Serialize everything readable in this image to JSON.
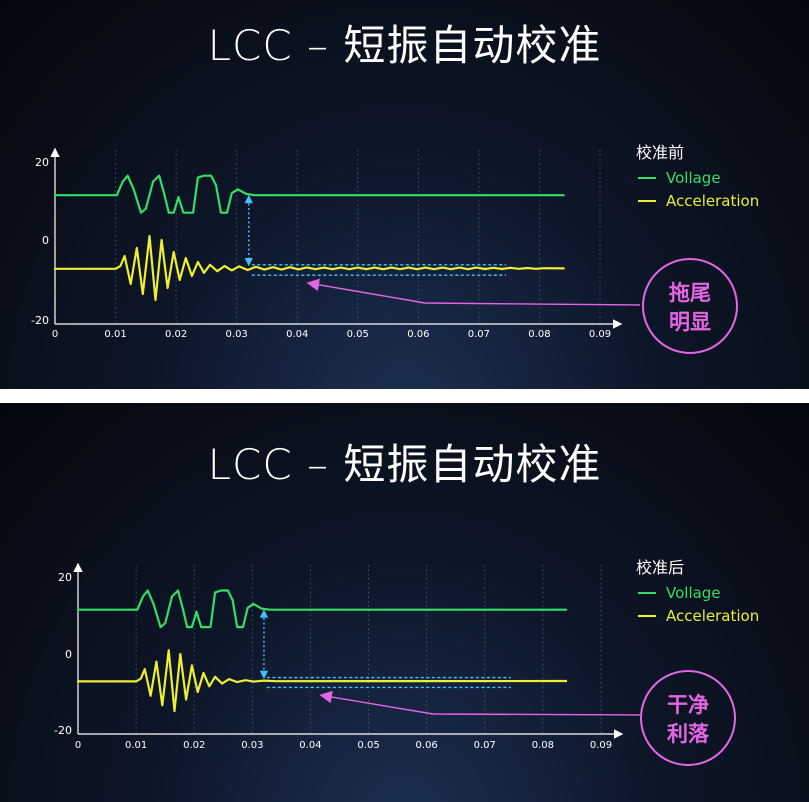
{
  "slides": [
    {
      "title": "LCC – 短振自动校准",
      "legend": {
        "heading": "校准前",
        "voltage": "Vollage",
        "acceleration": "Acceleration"
      },
      "callout": {
        "line1": "拖尾",
        "line2": "明显"
      }
    },
    {
      "title": "LCC – 短振自动校准",
      "legend": {
        "heading": "校准后",
        "voltage": "Vollage",
        "acceleration": "Acceleration"
      },
      "callout": {
        "line1": "干净",
        "line2": "利落"
      }
    }
  ],
  "colors": {
    "voltage": "#33dd66",
    "acceleration": "#eeee33",
    "annotation": "#3fc4ff",
    "callout": "#e466e4"
  },
  "chart_data": [
    {
      "type": "line",
      "title": "校准前",
      "x_ticks": [
        "0",
        "0.01",
        "0.02",
        "0.03",
        "0.04",
        "0.05",
        "0.06",
        "0.07",
        "0.08",
        "0.09"
      ],
      "y_ticks": [
        "20",
        "0",
        "-20"
      ],
      "xlim": [
        0,
        0.09
      ],
      "ylim": [
        -20,
        20
      ],
      "series": [
        {
          "name": "Vollage",
          "points": [
            [
              0,
              11.5
            ],
            [
              0.0102,
              11.5
            ],
            [
              0.0112,
              15
            ],
            [
              0.012,
              16.5
            ],
            [
              0.013,
              13
            ],
            [
              0.0142,
              7
            ],
            [
              0.015,
              8
            ],
            [
              0.0162,
              15
            ],
            [
              0.0172,
              16.5
            ],
            [
              0.018,
              12
            ],
            [
              0.0188,
              7
            ],
            [
              0.0196,
              7
            ],
            [
              0.0204,
              11
            ],
            [
              0.0212,
              7
            ],
            [
              0.0228,
              7
            ],
            [
              0.0236,
              16
            ],
            [
              0.0246,
              16.5
            ],
            [
              0.0258,
              16.5
            ],
            [
              0.0266,
              14
            ],
            [
              0.0274,
              7
            ],
            [
              0.0284,
              7
            ],
            [
              0.0292,
              12
            ],
            [
              0.0302,
              13
            ],
            [
              0.0316,
              11.8
            ],
            [
              0.033,
              11.5
            ],
            [
              0.084,
              11.5
            ]
          ]
        },
        {
          "name": "Acceleration",
          "points": [
            [
              0,
              -7.2
            ],
            [
              0.01,
              -7.2
            ],
            [
              0.0108,
              -6.5
            ],
            [
              0.0115,
              -4
            ],
            [
              0.0125,
              -11
            ],
            [
              0.0135,
              -2
            ],
            [
              0.0145,
              -13.5
            ],
            [
              0.0156,
              1
            ],
            [
              0.0166,
              -15
            ],
            [
              0.0176,
              0
            ],
            [
              0.0186,
              -12
            ],
            [
              0.0196,
              -3
            ],
            [
              0.0206,
              -10
            ],
            [
              0.0216,
              -4.5
            ],
            [
              0.0226,
              -9
            ],
            [
              0.0236,
              -5.5
            ],
            [
              0.0246,
              -8.2
            ],
            [
              0.0256,
              -6.2
            ],
            [
              0.0268,
              -7.8
            ],
            [
              0.028,
              -6.5
            ],
            [
              0.0292,
              -7.6
            ],
            [
              0.0304,
              -6.6
            ],
            [
              0.0318,
              -7.5
            ],
            [
              0.0332,
              -6.7
            ],
            [
              0.0346,
              -7.4
            ],
            [
              0.036,
              -6.8
            ],
            [
              0.0374,
              -7.4
            ],
            [
              0.0388,
              -6.8
            ],
            [
              0.0402,
              -7.35
            ],
            [
              0.0416,
              -6.85
            ],
            [
              0.043,
              -7.3
            ],
            [
              0.0444,
              -6.9
            ],
            [
              0.0458,
              -7.3
            ],
            [
              0.0472,
              -6.9
            ],
            [
              0.0486,
              -7.3
            ],
            [
              0.05,
              -6.9
            ],
            [
              0.0514,
              -7.3
            ],
            [
              0.0528,
              -6.9
            ],
            [
              0.0542,
              -7.3
            ],
            [
              0.0556,
              -6.9
            ],
            [
              0.057,
              -7.3
            ],
            [
              0.0584,
              -6.9
            ],
            [
              0.0598,
              -7.3
            ],
            [
              0.0612,
              -6.9
            ],
            [
              0.0626,
              -7.3
            ],
            [
              0.064,
              -6.9
            ],
            [
              0.0654,
              -7.3
            ],
            [
              0.0668,
              -6.9
            ],
            [
              0.0682,
              -7.3
            ],
            [
              0.0696,
              -6.9
            ],
            [
              0.071,
              -7.25
            ],
            [
              0.0724,
              -6.95
            ],
            [
              0.0738,
              -7.25
            ],
            [
              0.0752,
              -6.95
            ],
            [
              0.0766,
              -7.2
            ],
            [
              0.078,
              -7.0
            ],
            [
              0.0794,
              -7.2
            ],
            [
              0.0808,
              -7.05
            ],
            [
              0.084,
              -7.1
            ]
          ]
        }
      ],
      "annotation": {
        "vline_x": 0.032,
        "vline_y": [
          10.5,
          -5.5
        ],
        "band_x": [
          0.0325,
          0.0745
        ],
        "band_y": [
          -6.2,
          -8.8
        ]
      },
      "grid": "dotted"
    },
    {
      "type": "line",
      "title": "校准后",
      "x_ticks": [
        "0",
        "0.01",
        "0.02",
        "0.03",
        "0.04",
        "0.05",
        "0.06",
        "0.07",
        "0.08",
        "0.09"
      ],
      "y_ticks": [
        "20",
        "0",
        "-20"
      ],
      "xlim": [
        0,
        0.09
      ],
      "ylim": [
        -20,
        20
      ],
      "series": [
        {
          "name": "Vollage",
          "points": [
            [
              0,
              11.5
            ],
            [
              0.0102,
              11.5
            ],
            [
              0.0112,
              15
            ],
            [
              0.012,
              16.5
            ],
            [
              0.013,
              13
            ],
            [
              0.0142,
              7
            ],
            [
              0.015,
              8
            ],
            [
              0.0162,
              15
            ],
            [
              0.0172,
              16.5
            ],
            [
              0.018,
              12
            ],
            [
              0.0188,
              7
            ],
            [
              0.0196,
              7
            ],
            [
              0.0204,
              11
            ],
            [
              0.0212,
              7
            ],
            [
              0.0228,
              7
            ],
            [
              0.0236,
              16
            ],
            [
              0.0246,
              16.5
            ],
            [
              0.0258,
              16.5
            ],
            [
              0.0266,
              14
            ],
            [
              0.0274,
              7
            ],
            [
              0.0284,
              7
            ],
            [
              0.0292,
              12
            ],
            [
              0.0302,
              13
            ],
            [
              0.0316,
              11.8
            ],
            [
              0.033,
              11.5
            ],
            [
              0.084,
              11.5
            ]
          ]
        },
        {
          "name": "Acceleration",
          "points": [
            [
              0,
              -7.2
            ],
            [
              0.01,
              -7.2
            ],
            [
              0.0108,
              -6.5
            ],
            [
              0.0115,
              -4
            ],
            [
              0.0125,
              -11
            ],
            [
              0.0135,
              -2
            ],
            [
              0.0145,
              -13.5
            ],
            [
              0.0156,
              1
            ],
            [
              0.0166,
              -15
            ],
            [
              0.0176,
              0
            ],
            [
              0.0186,
              -12
            ],
            [
              0.0196,
              -3
            ],
            [
              0.0206,
              -10
            ],
            [
              0.0216,
              -5
            ],
            [
              0.0226,
              -8.5
            ],
            [
              0.0236,
              -6
            ],
            [
              0.0248,
              -7.8
            ],
            [
              0.026,
              -6.6
            ],
            [
              0.0274,
              -7.4
            ],
            [
              0.0288,
              -6.9
            ],
            [
              0.0302,
              -7.25
            ],
            [
              0.032,
              -7.0
            ],
            [
              0.034,
              -7.15
            ],
            [
              0.084,
              -7.1
            ]
          ]
        }
      ],
      "annotation": {
        "vline_x": 0.032,
        "vline_y": [
          10.5,
          -5.5
        ],
        "band_x": [
          0.0325,
          0.0745
        ],
        "band_y": [
          -6.2,
          -8.8
        ]
      },
      "grid": "dotted"
    }
  ]
}
